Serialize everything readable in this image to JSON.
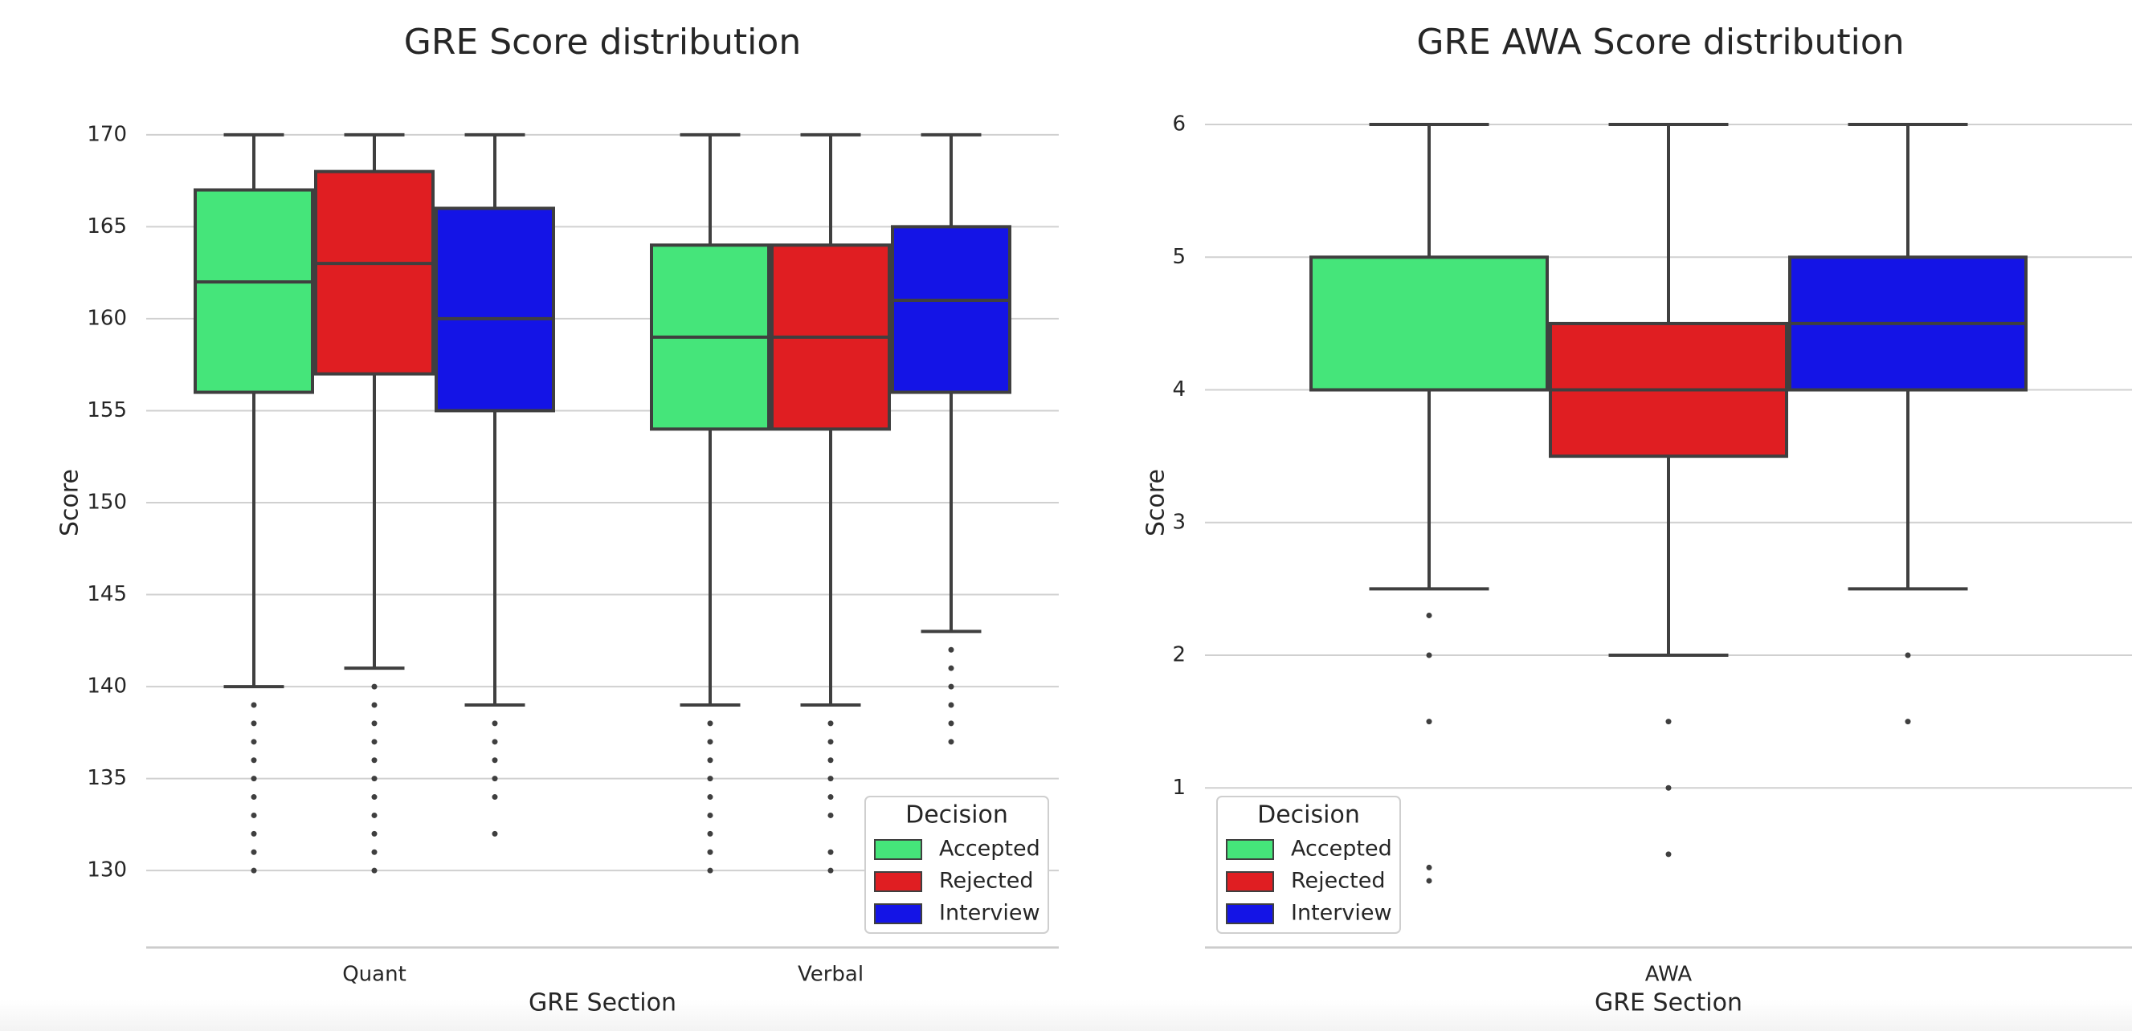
{
  "colors": {
    "Accepted": "#45e57a",
    "Rejected": "#e01e22",
    "Interview": "#1414e6"
  },
  "chart_data": [
    {
      "type": "box",
      "title": "GRE Score distribution",
      "xlabel": "GRE Section",
      "ylabel": "Score",
      "ylim": [
        128,
        172
      ],
      "yticks": [
        130,
        135,
        140,
        145,
        150,
        155,
        160,
        165,
        170
      ],
      "grid": true,
      "legend": {
        "title": "Decision",
        "placement": "lower-right",
        "entries": [
          "Accepted",
          "Rejected",
          "Interview"
        ]
      },
      "categories": [
        "Quant",
        "Verbal"
      ],
      "series": [
        {
          "name": "Accepted",
          "boxes": [
            {
              "whislo": 140,
              "q1": 156,
              "med": 162,
              "q3": 167,
              "whishi": 170,
              "fliers": [
                139,
                138,
                137,
                136,
                135,
                134,
                133,
                132,
                131,
                130
              ]
            },
            {
              "whislo": 139,
              "q1": 154,
              "med": 159,
              "q3": 164,
              "whishi": 170,
              "fliers": [
                138,
                137,
                136,
                135,
                134,
                133,
                132,
                131,
                130
              ]
            }
          ]
        },
        {
          "name": "Rejected",
          "boxes": [
            {
              "whislo": 141,
              "q1": 157,
              "med": 163,
              "q3": 168,
              "whishi": 170,
              "fliers": [
                140,
                139,
                138,
                137,
                136,
                135,
                134,
                133,
                132,
                131,
                130
              ]
            },
            {
              "whislo": 139,
              "q1": 154,
              "med": 159,
              "q3": 164,
              "whishi": 170,
              "fliers": [
                138,
                137,
                136,
                135,
                134,
                133,
                131,
                130
              ]
            }
          ]
        },
        {
          "name": "Interview",
          "boxes": [
            {
              "whislo": 139,
              "q1": 155,
              "med": 160,
              "q3": 166,
              "whishi": 170,
              "fliers": [
                138,
                137,
                136,
                135,
                134,
                132
              ]
            },
            {
              "whislo": 143,
              "q1": 156,
              "med": 161,
              "q3": 165,
              "whishi": 170,
              "fliers": [
                142,
                141,
                140,
                139,
                138,
                137
              ]
            }
          ]
        }
      ]
    },
    {
      "type": "box",
      "title": "GRE AWA Score distribution",
      "xlabel": "GRE Section",
      "ylabel": "Score",
      "ylim": [
        0.1,
        6.2
      ],
      "yticks": [
        1,
        2,
        3,
        4,
        5,
        6
      ],
      "grid": true,
      "legend": {
        "title": "Decision",
        "placement": "lower-left",
        "entries": [
          "Accepted",
          "Rejected",
          "Interview"
        ]
      },
      "categories": [
        "AWA"
      ],
      "series": [
        {
          "name": "Accepted",
          "boxes": [
            {
              "whislo": 2.5,
              "q1": 4.0,
              "med": 4.0,
              "q3": 5.0,
              "whishi": 6.0,
              "fliers": [
                2.3,
                2.0,
                1.5,
                0.4,
                0.3
              ]
            }
          ]
        },
        {
          "name": "Rejected",
          "boxes": [
            {
              "whislo": 2.0,
              "q1": 3.5,
              "med": 4.0,
              "q3": 4.5,
              "whishi": 6.0,
              "fliers": [
                1.5,
                1.0,
                0.5
              ]
            }
          ]
        },
        {
          "name": "Interview",
          "boxes": [
            {
              "whislo": 2.5,
              "q1": 4.0,
              "med": 4.5,
              "q3": 5.0,
              "whishi": 6.0,
              "fliers": [
                2.0,
                1.5
              ]
            }
          ]
        }
      ]
    }
  ]
}
